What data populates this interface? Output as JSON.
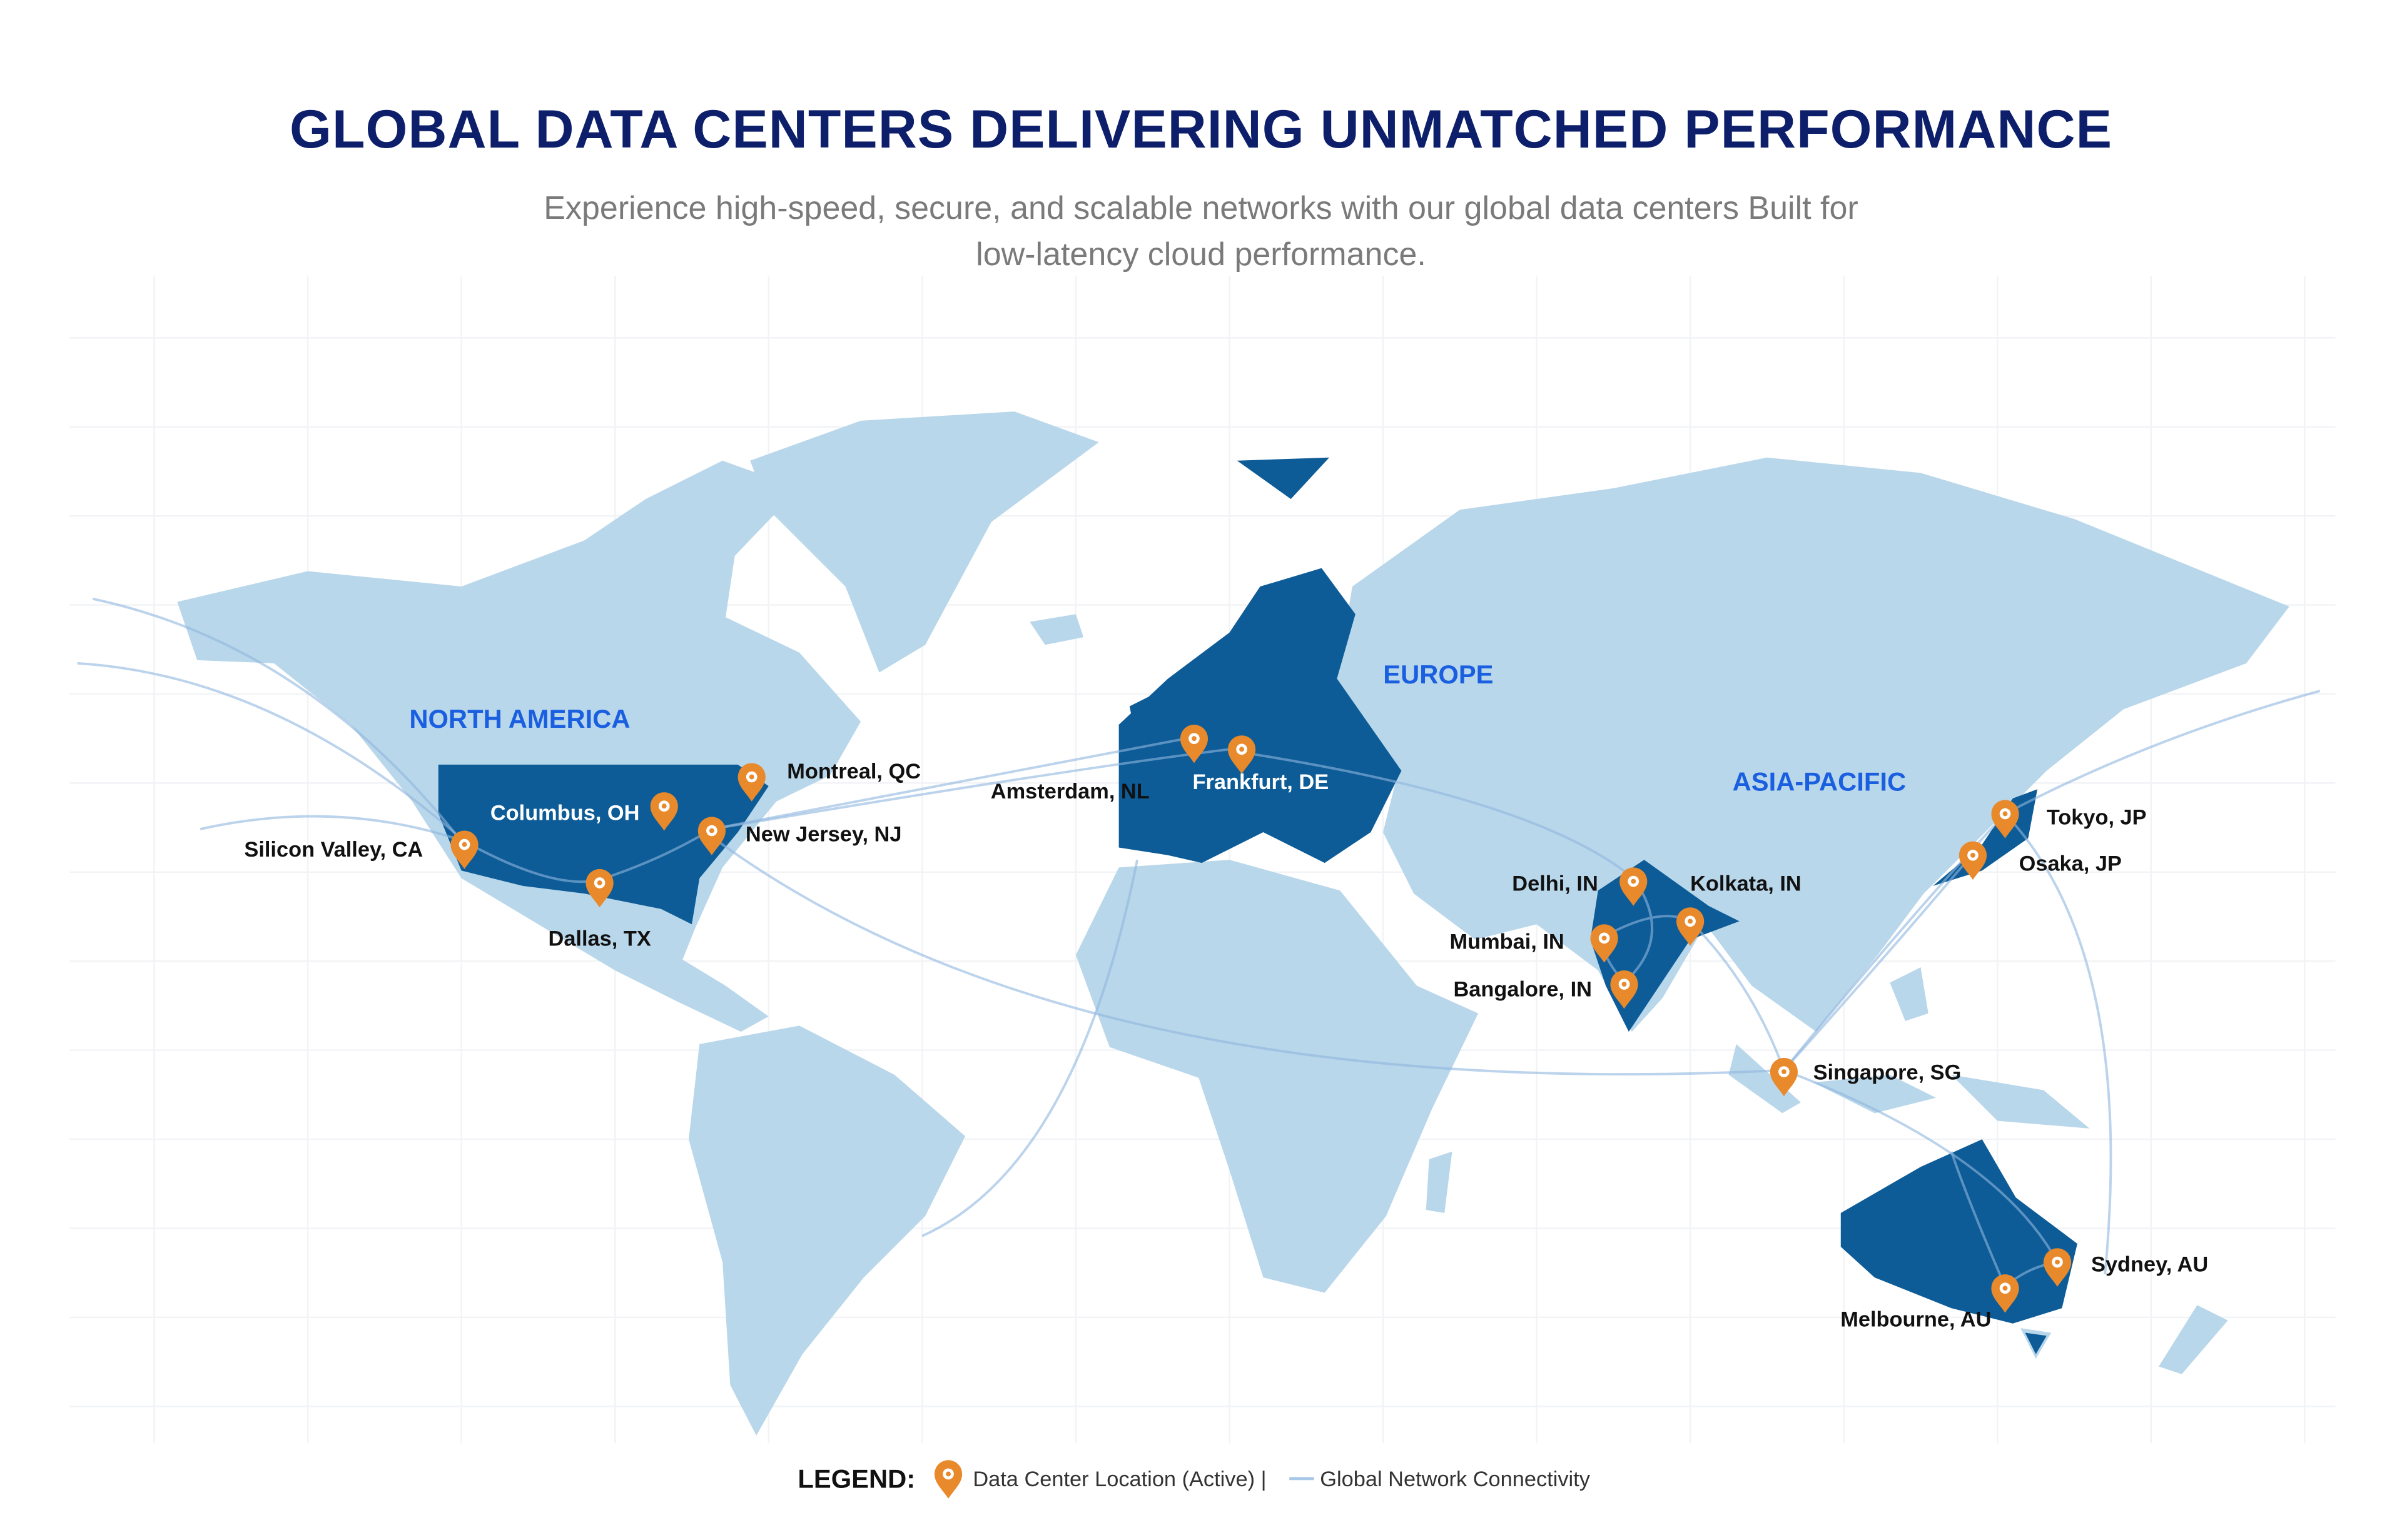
{
  "header": {
    "title": "GLOBAL DATA CENTERS DELIVERING UNMATCHED PERFORMANCE",
    "subtitle": "Experience high-speed, secure, and scalable networks with our global data centers Built for low-latency cloud performance."
  },
  "regions": [
    "NORTH AMERICA",
    "EUROPE",
    "ASIA-PACIFIC"
  ],
  "locations": [
    "Silicon Valley, CA",
    "Dallas, TX",
    "Columbus, OH",
    "New Jersey, NJ",
    "Montreal, QC",
    "Amsterdam, NL",
    "Frankfurt, DE",
    "Delhi, IN",
    "Kolkata, IN",
    "Mumbai, IN",
    "Bangalore, IN",
    "Singapore, SG",
    "Tokyo, JP",
    "Osaka, JP",
    "Sydney, AU",
    "Melbourne, AU"
  ],
  "legend": {
    "heading": "LEGEND:",
    "items": [
      "Data Center Location (Active) |",
      "Global Network Connectivity"
    ]
  }
}
